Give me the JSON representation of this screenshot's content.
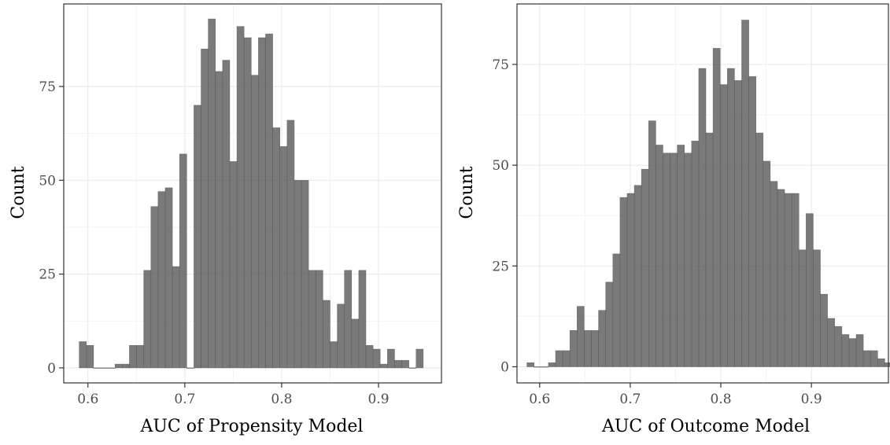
{
  "chart_data": [
    {
      "type": "bar",
      "title": "",
      "xlabel": "AUC of Propensity Model",
      "ylabel": "Count",
      "xlim": [
        0.575,
        0.965
      ],
      "ylim": [
        -4,
        97
      ],
      "x_ticks": [
        "0.6",
        "0.7",
        "0.8",
        "0.9"
      ],
      "y_ticks": [
        "0",
        "25",
        "50",
        "75"
      ],
      "grid": true,
      "bin_start": 0.591,
      "bin_width": 0.0074,
      "values": [
        7,
        6,
        0,
        0,
        0,
        1,
        1,
        6,
        6,
        26,
        43,
        47,
        48,
        27,
        57,
        0,
        70,
        85,
        93,
        79,
        82,
        55,
        91,
        88,
        78,
        88,
        89,
        64,
        59,
        66,
        50,
        50,
        26,
        26,
        18,
        7,
        17,
        26,
        13,
        26,
        6,
        5,
        1,
        5,
        2,
        2,
        0,
        5
      ]
    },
    {
      "type": "bar",
      "title": "",
      "xlabel": "AUC of Outcome Model",
      "ylabel": "Count",
      "xlim": [
        0.575,
        0.985
      ],
      "ylim": [
        -4,
        90
      ],
      "x_ticks": [
        "0.6",
        "0.7",
        "0.8",
        "0.9"
      ],
      "y_ticks": [
        "0",
        "25",
        "50",
        "75"
      ],
      "grid": true,
      "bin_start": 0.586,
      "bin_width": 0.0079,
      "values": [
        1,
        0,
        0,
        1,
        4,
        4,
        9,
        15,
        9,
        9,
        14,
        21,
        28,
        42,
        43,
        45,
        49,
        61,
        55,
        53,
        53,
        55,
        53,
        56,
        74,
        58,
        79,
        70,
        74,
        71,
        86,
        72,
        58,
        51,
        46,
        44,
        43,
        43,
        29,
        38,
        29,
        18,
        12,
        10,
        8,
        7,
        8,
        4,
        4,
        2,
        1,
        3,
        1,
        2
      ]
    }
  ]
}
